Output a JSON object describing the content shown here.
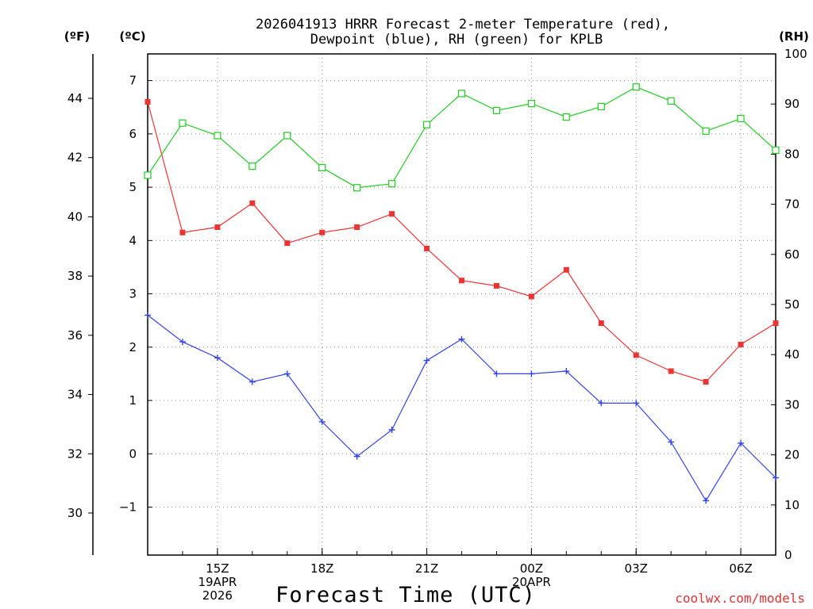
{
  "chart_data": {
    "type": "line",
    "title_line1": "2026041913 HRRR Forecast 2-meter Temperature (red),",
    "title_line2": "Dewpoint (blue), RH (green) for KPLB",
    "xlabel": "Forecast Time (UTC)",
    "credit": "coolwx.com/models",
    "units": {
      "fahrenheit": "(ºF)",
      "celsius": "(ºC)",
      "rh": "(RH)"
    },
    "x_hours": [
      13,
      14,
      15,
      16,
      17,
      18,
      19,
      20,
      21,
      22,
      23,
      24,
      25,
      26,
      27,
      28,
      29,
      30,
      31
    ],
    "xlim": [
      13,
      31
    ],
    "ylim_c": [
      -1.9,
      7.5
    ],
    "ylim_rh": [
      0,
      100
    ],
    "x_ticks": [
      {
        "hour": 15,
        "lines": [
          "15Z",
          "19APR",
          "2026"
        ]
      },
      {
        "hour": 18,
        "lines": [
          "18Z"
        ]
      },
      {
        "hour": 21,
        "lines": [
          "21Z"
        ]
      },
      {
        "hour": 24,
        "lines": [
          "00Z",
          "20APR"
        ]
      },
      {
        "hour": 27,
        "lines": [
          "03Z"
        ]
      },
      {
        "hour": 30,
        "lines": [
          "06Z"
        ]
      }
    ],
    "y_ticks_c": [
      -1,
      0,
      1,
      2,
      3,
      4,
      5,
      6,
      7
    ],
    "y_ticks_f": [
      30,
      32,
      34,
      36,
      38,
      40,
      42,
      44
    ],
    "y_ticks_rh": [
      0,
      10,
      20,
      30,
      40,
      50,
      60,
      70,
      80,
      90,
      100
    ],
    "series": [
      {
        "name": "2-meter Temperature (°C)",
        "color": "#ee3333",
        "marker": "filled-square",
        "axis": "c",
        "values": [
          6.6,
          4.15,
          4.25,
          4.7,
          3.95,
          4.15,
          4.25,
          4.5,
          3.85,
          3.25,
          3.15,
          2.95,
          3.45,
          2.45,
          1.85,
          1.55,
          1.35,
          2.05,
          2.45
        ]
      },
      {
        "name": "Dewpoint (°C)",
        "color": "#3344ee",
        "marker": "plus",
        "axis": "c",
        "values": [
          2.6,
          2.1,
          1.8,
          1.35,
          1.5,
          0.6,
          -0.05,
          0.45,
          1.75,
          2.15,
          1.5,
          1.5,
          1.55,
          0.95,
          0.95,
          0.22,
          -0.88,
          0.2,
          -0.45
        ]
      },
      {
        "name": "RH (%)",
        "color": "#22cc22",
        "marker": "open-square",
        "axis": "rh",
        "values": [
          75.8,
          86.2,
          83.7,
          77.6,
          83.7,
          77.3,
          73.3,
          74.1,
          85.9,
          92.1,
          88.7,
          90.1,
          87.4,
          89.5,
          93.4,
          90.6,
          84.6,
          87.1,
          80.8
        ]
      }
    ]
  }
}
